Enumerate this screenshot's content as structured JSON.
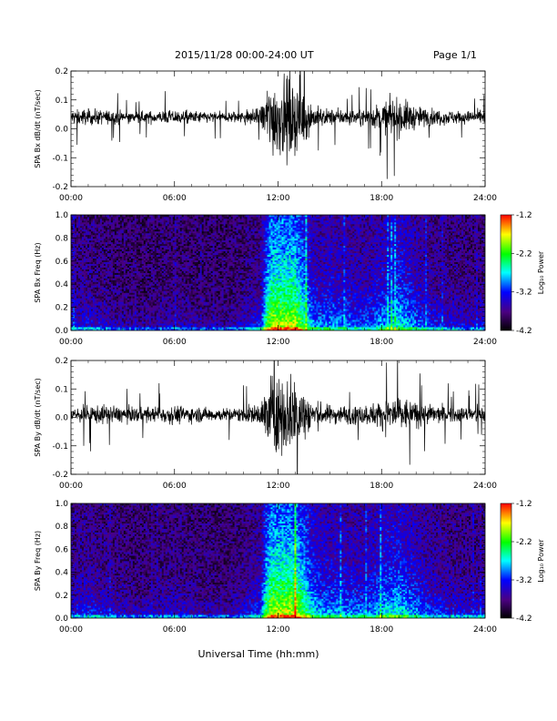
{
  "header": {
    "title": "2015/11/28  00:00-24:00 UT",
    "page": "Page 1/1"
  },
  "xlabel": "Universal Time (hh:mm)",
  "colors": {
    "trace": "#000000",
    "colorscale": [
      "#000000",
      "#4b0082",
      "#0000ff",
      "#00ffff",
      "#00ff00",
      "#ffff00",
      "#ff0000"
    ]
  },
  "chart_data": [
    {
      "type": "line",
      "panel": "SPA Bx dB/dt",
      "ylabel": "SPA Bx dB/dt (nT/sec)",
      "xlim": [
        0,
        24
      ],
      "ylim": [
        -0.2,
        0.2
      ],
      "xticks": [
        "00:00",
        "06:00",
        "12:00",
        "18:00",
        "24:00"
      ],
      "yticks": [
        "-0.2",
        "-0.1",
        "0.0",
        "0.1",
        "0.2"
      ],
      "baseline": 0.04,
      "envelope_x": [
        0,
        1,
        2,
        3,
        4,
        5,
        6,
        7,
        8,
        9,
        10,
        11,
        11.3,
        11.6,
        12,
        12.5,
        13,
        13.5,
        14,
        14.5,
        15,
        16,
        17,
        18,
        18.5,
        19,
        19.5,
        20,
        21,
        22,
        23,
        24
      ],
      "envelope_y": [
        0.05,
        0.05,
        0.045,
        0.04,
        0.035,
        0.04,
        0.045,
        0.04,
        0.035,
        0.035,
        0.045,
        0.06,
        0.17,
        0.25,
        0.25,
        0.25,
        0.25,
        0.17,
        0.08,
        0.06,
        0.05,
        0.05,
        0.05,
        0.09,
        0.11,
        0.12,
        0.1,
        0.07,
        0.05,
        0.045,
        0.04,
        0.04
      ]
    },
    {
      "type": "heatmap",
      "panel": "SPA Bx Freq",
      "ylabel": "SPA Bx Freq (Hz)",
      "colorbar_label": "Log₁₀ Power",
      "xlim": [
        0,
        24
      ],
      "ylim": [
        0,
        1.0
      ],
      "clim": [
        -4.2,
        -1.2
      ],
      "xticks": [
        "00:00",
        "06:00",
        "12:00",
        "18:00",
        "24:00"
      ],
      "yticks": [
        "0.0",
        "0.2",
        "0.4",
        "0.6",
        "0.8",
        "1.0"
      ],
      "cticks": [
        "-1.2",
        "-2.2",
        "-3.2",
        "-4.2"
      ],
      "activity_x": [
        0,
        1,
        2,
        3,
        4,
        5,
        6,
        7,
        8,
        9,
        10,
        11,
        11.3,
        11.6,
        12,
        12.5,
        13,
        13.5,
        14,
        14.5,
        15,
        16,
        17,
        18,
        18.5,
        19,
        19.5,
        20,
        21,
        22,
        23,
        24
      ],
      "activity_y": [
        0.3,
        0.3,
        0.25,
        0.2,
        0.18,
        0.2,
        0.25,
        0.2,
        0.18,
        0.18,
        0.25,
        0.35,
        0.75,
        0.95,
        0.95,
        0.95,
        0.95,
        0.75,
        0.5,
        0.45,
        0.5,
        0.45,
        0.4,
        0.5,
        0.55,
        0.6,
        0.55,
        0.45,
        0.35,
        0.3,
        0.28,
        0.28
      ]
    },
    {
      "type": "line",
      "panel": "SPA By dB/dt",
      "ylabel": "SPA By dB/dt (nT/sec)",
      "xlim": [
        0,
        24
      ],
      "ylim": [
        -0.2,
        0.2
      ],
      "xticks": [
        "00:00",
        "06:00",
        "12:00",
        "18:00",
        "24:00"
      ],
      "yticks": [
        "-0.2",
        "-0.1",
        "0.0",
        "0.1",
        "0.2"
      ],
      "baseline": 0.01,
      "envelope_x": [
        0,
        1,
        2,
        3,
        4,
        5,
        6,
        7,
        8,
        9,
        10,
        11,
        11.3,
        11.6,
        12,
        12.5,
        13,
        13.5,
        14,
        14.5,
        15,
        16,
        17,
        18,
        18.5,
        19,
        19.5,
        20,
        21,
        22,
        23,
        24
      ],
      "envelope_y": [
        0.05,
        0.06,
        0.06,
        0.05,
        0.045,
        0.05,
        0.06,
        0.05,
        0.045,
        0.04,
        0.05,
        0.07,
        0.18,
        0.25,
        0.25,
        0.25,
        0.25,
        0.18,
        0.1,
        0.07,
        0.06,
        0.06,
        0.06,
        0.09,
        0.12,
        0.12,
        0.1,
        0.08,
        0.06,
        0.05,
        0.05,
        0.05
      ]
    },
    {
      "type": "heatmap",
      "panel": "SPA By Freq",
      "ylabel": "SPA By Freq (Hz)",
      "colorbar_label": "Log₁₀ Power",
      "xlim": [
        0,
        24
      ],
      "ylim": [
        0,
        1.0
      ],
      "clim": [
        -4.2,
        -1.2
      ],
      "xticks": [
        "00:00",
        "06:00",
        "12:00",
        "18:00",
        "24:00"
      ],
      "yticks": [
        "0.0",
        "0.2",
        "0.4",
        "0.6",
        "0.8",
        "1.0"
      ],
      "cticks": [
        "-1.2",
        "-2.2",
        "-3.2",
        "-4.2"
      ],
      "activity_x": [
        0,
        1,
        2,
        3,
        4,
        5,
        6,
        7,
        8,
        9,
        10,
        11,
        11.3,
        11.6,
        12,
        12.5,
        13,
        13.5,
        14,
        14.5,
        15,
        16,
        17,
        18,
        18.5,
        19,
        19.5,
        20,
        21,
        22,
        23,
        24
      ],
      "activity_y": [
        0.32,
        0.35,
        0.3,
        0.25,
        0.22,
        0.24,
        0.28,
        0.24,
        0.22,
        0.2,
        0.28,
        0.4,
        0.78,
        0.95,
        0.95,
        0.95,
        0.95,
        0.8,
        0.6,
        0.5,
        0.5,
        0.48,
        0.45,
        0.55,
        0.6,
        0.6,
        0.55,
        0.48,
        0.38,
        0.32,
        0.3,
        0.3
      ]
    }
  ]
}
